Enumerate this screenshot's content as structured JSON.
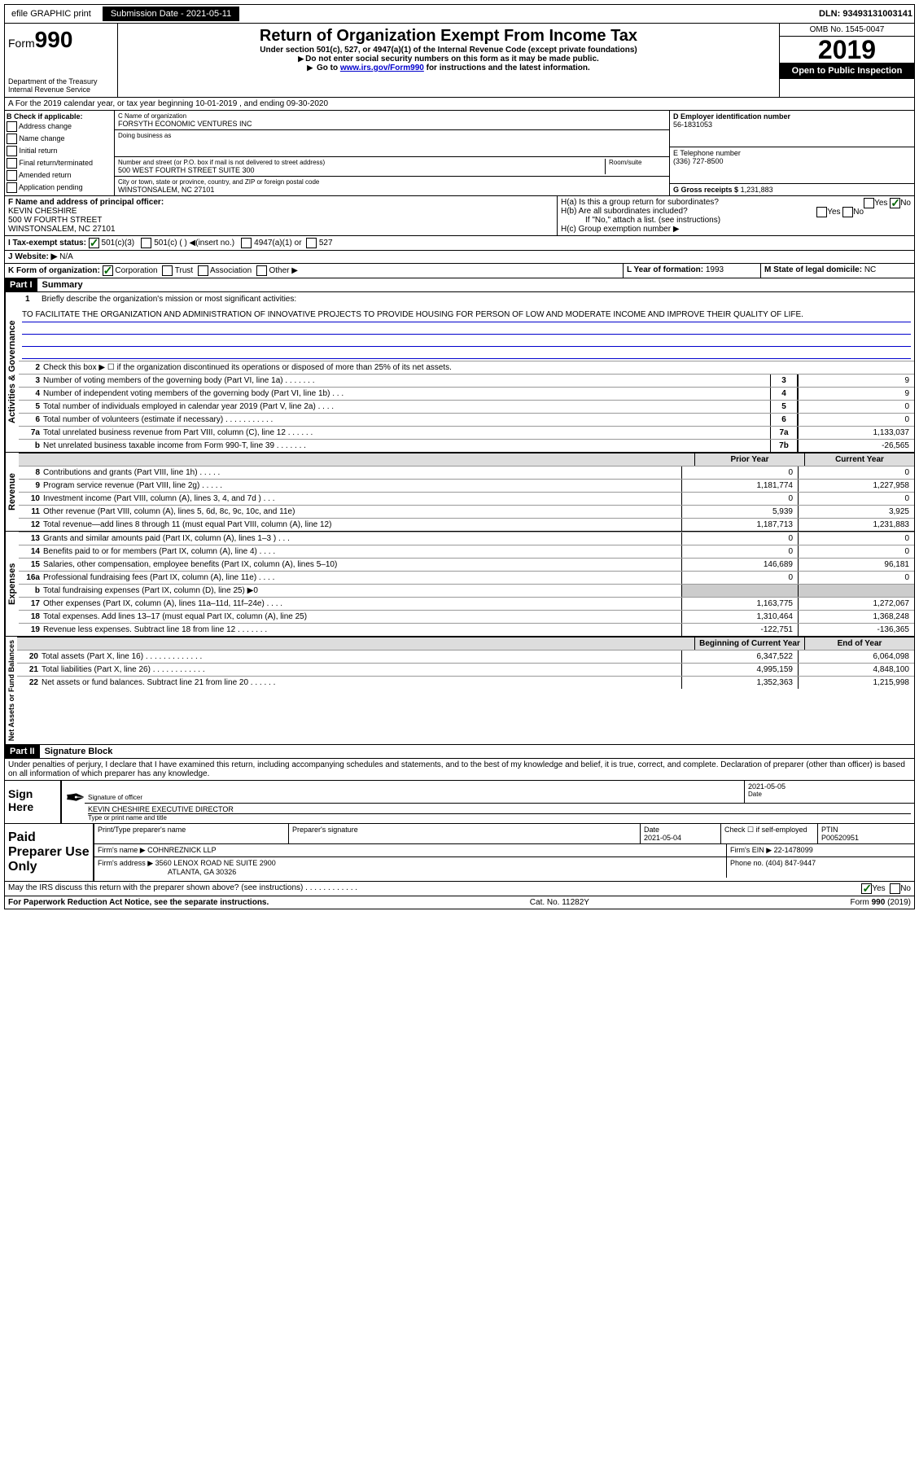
{
  "topbar": {
    "efile": "efile GRAPHIC print",
    "submission_label": "Submission Date",
    "submission_date": "2021-05-11",
    "dln_label": "DLN:",
    "dln": "93493131003141"
  },
  "header": {
    "form_prefix": "Form",
    "form_num": "990",
    "dept": "Department of the Treasury\nInternal Revenue Service",
    "title": "Return of Organization Exempt From Income Tax",
    "sub1": "Under section 501(c), 527, or 4947(a)(1) of the Internal Revenue Code (except private foundations)",
    "sub2": "Do not enter social security numbers on this form as it may be made public.",
    "sub3_pre": "Go to ",
    "sub3_link": "www.irs.gov/Form990",
    "sub3_post": " for instructions and the latest information.",
    "omb": "OMB No. 1545-0047",
    "year": "2019",
    "inspection": "Open to Public Inspection"
  },
  "rowA": {
    "text": "A For the 2019 calendar year, or tax year beginning 10-01-2019    , and ending 09-30-2020"
  },
  "boxB": {
    "label": "B Check if applicable:",
    "opts": [
      "Address change",
      "Name change",
      "Initial return",
      "Final return/terminated",
      "Amended return",
      "Application pending"
    ]
  },
  "boxC": {
    "name_label": "C Name of organization",
    "name": "FORSYTH ECONOMIC VENTURES INC",
    "dba_label": "Doing business as",
    "dba": "",
    "addr_label": "Number and street (or P.O. box if mail is not delivered to street address)",
    "addr": "500 WEST FOURTH STREET SUITE 300",
    "room_label": "Room/suite",
    "city_label": "City or town, state or province, country, and ZIP or foreign postal code",
    "city": "WINSTONSALEM, NC  27101"
  },
  "boxD": {
    "label": "D Employer identification number",
    "val": "56-1831053"
  },
  "boxE": {
    "label": "E Telephone number",
    "val": "(336) 727-8500"
  },
  "boxG": {
    "label": "G Gross receipts $",
    "val": "1,231,883"
  },
  "boxF": {
    "label": "F Name and address of principal officer:",
    "name": "KEVIN CHESHIRE",
    "addr1": "500 W FOURTH STREET",
    "addr2": "WINSTONSALEM, NC  27101"
  },
  "boxH": {
    "a": "H(a)  Is this a group return for subordinates?",
    "b": "H(b)  Are all subordinates included?",
    "b_note": "If \"No,\" attach a list. (see instructions)",
    "c": "H(c)  Group exemption number ▶",
    "yes": "Yes",
    "no": "No"
  },
  "boxI": {
    "label": "I Tax-exempt status:",
    "o1": "501(c)(3)",
    "o2": "501(c) (   ) ◀(insert no.)",
    "o3": "4947(a)(1) or",
    "o4": "527"
  },
  "boxJ": {
    "label": "J   Website: ▶",
    "val": "N/A"
  },
  "boxK": {
    "label": "K Form of organization:",
    "o1": "Corporation",
    "o2": "Trust",
    "o3": "Association",
    "o4": "Other ▶"
  },
  "boxL": {
    "label": "L Year of formation:",
    "val": "1993"
  },
  "boxM": {
    "label": "M State of legal domicile:",
    "val": "NC"
  },
  "part1": {
    "header": "Part I",
    "title": "Summary",
    "vlabel_ag": "Activities & Governance",
    "vlabel_rev": "Revenue",
    "vlabel_exp": "Expenses",
    "vlabel_na": "Net Assets or Fund Balances",
    "line1_label": "Briefly describe the organization's mission or most significant activities:",
    "line1_text": "TO FACILITATE THE ORGANIZATION AND ADMINISTRATION OF INNOVATIVE PROJECTS TO PROVIDE HOUSING FOR PERSON OF LOW AND MODERATE INCOME AND IMPROVE THEIR QUALITY OF LIFE.",
    "line2": "Check this box ▶ ☐  if the organization discontinued its operations or disposed of more than 25% of its net assets.",
    "prior_year": "Prior Year",
    "current_year": "Current Year",
    "beg_year": "Beginning of Current Year",
    "end_year": "End of Year",
    "lines_ag": [
      {
        "n": "3",
        "t": "Number of voting members of the governing body (Part VI, line 1a)   .   .   .   .   .   .   .",
        "box": "3",
        "v": "9"
      },
      {
        "n": "4",
        "t": "Number of independent voting members of the governing body (Part VI, line 1b)   .   .   .",
        "box": "4",
        "v": "9"
      },
      {
        "n": "5",
        "t": "Total number of individuals employed in calendar year 2019 (Part V, line 2a)   .   .   .   .",
        "box": "5",
        "v": "0"
      },
      {
        "n": "6",
        "t": "Total number of volunteers (estimate if necessary)   .   .   .   .   .   .   .   .   .   .   .",
        "box": "6",
        "v": "0"
      },
      {
        "n": "7a",
        "t": "Total unrelated business revenue from Part VIII, column (C), line 12   .   .   .   .   .   .",
        "box": "7a",
        "v": "1,133,037"
      },
      {
        "n": "b",
        "t": "Net unrelated business taxable income from Form 990-T, line 39   .   .   .   .   .   .   .",
        "box": "7b",
        "v": "-26,565"
      }
    ],
    "lines_rev": [
      {
        "n": "8",
        "t": "Contributions and grants (Part VIII, line 1h)   .   .   .   .   .",
        "py": "0",
        "cy": "0"
      },
      {
        "n": "9",
        "t": "Program service revenue (Part VIII, line 2g)   .   .   .   .   .",
        "py": "1,181,774",
        "cy": "1,227,958"
      },
      {
        "n": "10",
        "t": "Investment income (Part VIII, column (A), lines 3, 4, and 7d )   .   .   .",
        "py": "0",
        "cy": "0"
      },
      {
        "n": "11",
        "t": "Other revenue (Part VIII, column (A), lines 5, 6d, 8c, 9c, 10c, and 11e)",
        "py": "5,939",
        "cy": "3,925"
      },
      {
        "n": "12",
        "t": "Total revenue—add lines 8 through 11 (must equal Part VIII, column (A), line 12)",
        "py": "1,187,713",
        "cy": "1,231,883"
      }
    ],
    "lines_exp": [
      {
        "n": "13",
        "t": "Grants and similar amounts paid (Part IX, column (A), lines 1–3 )   .   .   .",
        "py": "0",
        "cy": "0"
      },
      {
        "n": "14",
        "t": "Benefits paid to or for members (Part IX, column (A), line 4)   .   .   .   .",
        "py": "0",
        "cy": "0"
      },
      {
        "n": "15",
        "t": "Salaries, other compensation, employee benefits (Part IX, column (A), lines 5–10)",
        "py": "146,689",
        "cy": "96,181"
      },
      {
        "n": "16a",
        "t": "Professional fundraising fees (Part IX, column (A), line 11e)   .   .   .   .",
        "py": "0",
        "cy": "0"
      },
      {
        "n": "b",
        "t": "Total fundraising expenses (Part IX, column (D), line 25) ▶0",
        "py": "",
        "cy": "",
        "shaded": true
      },
      {
        "n": "17",
        "t": "Other expenses (Part IX, column (A), lines 11a–11d, 11f–24e)   .   .   .   .",
        "py": "1,163,775",
        "cy": "1,272,067"
      },
      {
        "n": "18",
        "t": "Total expenses. Add lines 13–17 (must equal Part IX, column (A), line 25)",
        "py": "1,310,464",
        "cy": "1,368,248"
      },
      {
        "n": "19",
        "t": "Revenue less expenses. Subtract line 18 from line 12   .   .   .   .   .   .   .",
        "py": "-122,751",
        "cy": "-136,365"
      }
    ],
    "lines_na": [
      {
        "n": "20",
        "t": "Total assets (Part X, line 16)   .   .   .   .   .   .   .   .   .   .   .   .   .",
        "py": "6,347,522",
        "cy": "6,064,098"
      },
      {
        "n": "21",
        "t": "Total liabilities (Part X, line 26)   .   .   .   .   .   .   .   .   .   .   .   .",
        "py": "4,995,159",
        "cy": "4,848,100"
      },
      {
        "n": "22",
        "t": "Net assets or fund balances. Subtract line 21 from line 20   .   .   .   .   .   .",
        "py": "1,352,363",
        "cy": "1,215,998"
      }
    ]
  },
  "part2": {
    "header": "Part II",
    "title": "Signature Block",
    "declaration": "Under penalties of perjury, I declare that I have examined this return, including accompanying schedules and statements, and to the best of my knowledge and belief, it is true, correct, and complete. Declaration of preparer (other than officer) is based on all information of which preparer has any knowledge.",
    "sign_here": "Sign Here",
    "sig_officer": "Signature of officer",
    "sig_date_label": "Date",
    "sig_date": "2021-05-05",
    "sig_name": "KEVIN CHESHIRE  EXECUTIVE DIRECTOR",
    "sig_name_label": "Type or print name and title",
    "paid_prep": "Paid Preparer Use Only",
    "prep_name_label": "Print/Type preparer's name",
    "prep_sig_label": "Preparer's signature",
    "prep_date_label": "Date",
    "prep_date": "2021-05-04",
    "prep_self": "Check ☐ if self-employed",
    "ptin_label": "PTIN",
    "ptin": "P00520951",
    "firm_name_label": "Firm's name    ▶",
    "firm_name": "COHNREZNICK LLP",
    "firm_ein_label": "Firm's EIN ▶",
    "firm_ein": "22-1478099",
    "firm_addr_label": "Firm's address ▶",
    "firm_addr1": "3560 LENOX ROAD NE SUITE 2900",
    "firm_addr2": "ATLANTA, GA  30326",
    "phone_label": "Phone no.",
    "phone": "(404) 847-9447",
    "discuss": "May the IRS discuss this return with the preparer shown above? (see instructions)   .   .   .   .   .   .   .   .   .   .   .   .",
    "yes": "Yes",
    "no": "No"
  },
  "footer": {
    "left": "For Paperwork Reduction Act Notice, see the separate instructions.",
    "mid": "Cat. No. 11282Y",
    "right": "Form 990 (2019)"
  }
}
